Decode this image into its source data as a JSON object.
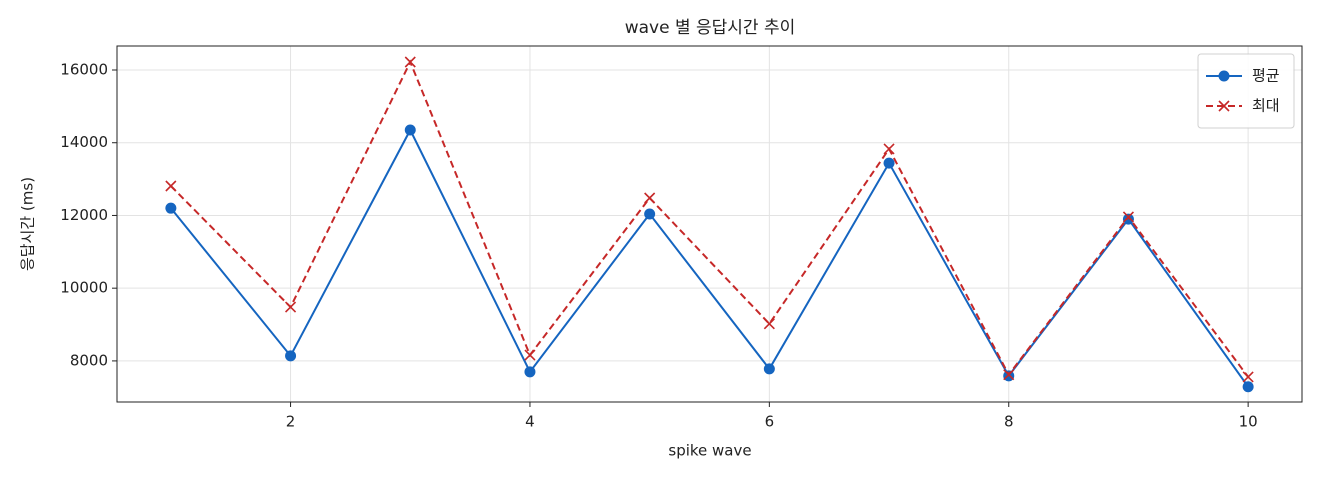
{
  "chart_data": {
    "type": "line",
    "title": "wave 별 응답시간 추이",
    "xlabel": "spike wave",
    "ylabel": "응답시간 (ms)",
    "x": [
      1,
      2,
      3,
      4,
      5,
      6,
      7,
      8,
      9,
      10
    ],
    "series": [
      {
        "name": "평균",
        "color": "#1565c0",
        "marker": "circle",
        "linestyle": "solid",
        "values": [
          12200,
          8140,
          14350,
          7700,
          12040,
          7780,
          13440,
          7590,
          11900,
          7290
        ]
      },
      {
        "name": "최대",
        "color": "#c62828",
        "marker": "x",
        "linestyle": "dashed",
        "values": [
          12810,
          9480,
          16220,
          8160,
          12480,
          9020,
          13830,
          7620,
          11960,
          7560
        ]
      }
    ],
    "xlim": [
      0.55,
      10.45
    ],
    "xticks": [
      2,
      4,
      6,
      8,
      10
    ],
    "ylim": [
      6870,
      16660
    ],
    "yticks": [
      8000,
      10000,
      12000,
      14000,
      16000
    ],
    "grid": true,
    "legend": "upper right"
  }
}
